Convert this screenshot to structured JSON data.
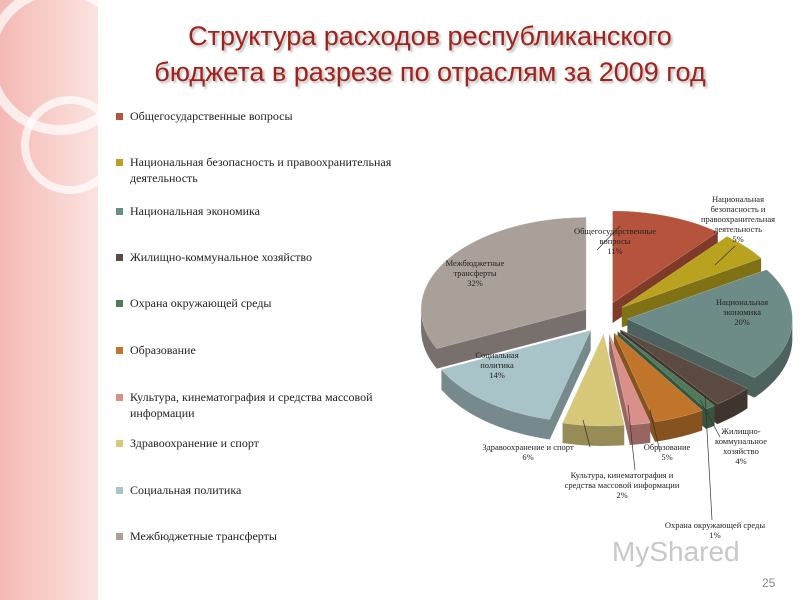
{
  "chart_data": {
    "type": "pie",
    "title": "Структура расходов республиканского\nбюджета в разрезе по отраслям за 2009 год",
    "categories": [
      "Общегосударственные вопросы",
      "Национальная безопасность и правоохранительная деятельность",
      "Национальная экономика",
      "Жилищно-коммунальное хозяйство",
      "Охрана окружающей среды",
      "Образование",
      "Культура, кинематография и средства массовой информации",
      "Здравоохранение и спорт",
      "Социальная политика",
      "Межбюджетные трансферты"
    ],
    "values": [
      11,
      5,
      20,
      4,
      1,
      5,
      2,
      6,
      14,
      32
    ],
    "value_labels": [
      "11%",
      "5%",
      "20%",
      "4%",
      "1%",
      "5%",
      "2%",
      "6%",
      "14%",
      "32%"
    ],
    "colors": [
      "#b5533c",
      "#b8a21e",
      "#6e8c87",
      "#5a4a42",
      "#4f7a5a",
      "#c0752a",
      "#d9908a",
      "#d8c87a",
      "#a9c4c9",
      "#aaa09a"
    ],
    "legend": "left"
  },
  "slide_number": "25",
  "watermark": "MyShared"
}
